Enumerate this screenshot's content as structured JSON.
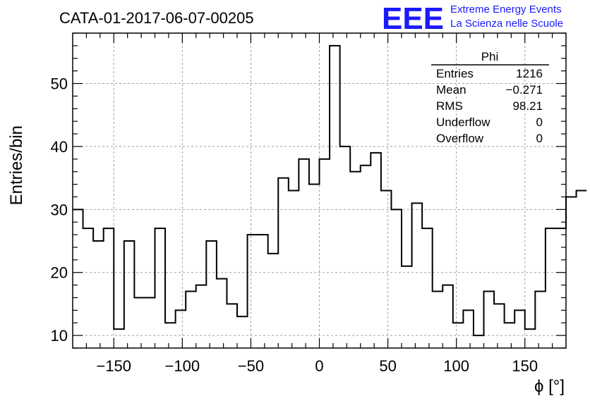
{
  "chart_data": {
    "type": "bar",
    "style": "step-histogram",
    "title": "CATA-01-2017-06-07-00205",
    "xlabel": "ϕ [°]",
    "ylabel": "Entries/bin",
    "xlim": [
      -180,
      180
    ],
    "ylim": [
      8,
      58
    ],
    "x_ticks": [
      -150,
      -100,
      -50,
      0,
      50,
      100,
      150
    ],
    "x_tick_labels": [
      "−150",
      "−100",
      "−50",
      "0",
      "50",
      "100",
      "150"
    ],
    "y_ticks": [
      10,
      20,
      30,
      40,
      50
    ],
    "y_tick_labels": [
      "10",
      "20",
      "30",
      "40",
      "50"
    ],
    "grid": true,
    "bin_width": 7.5,
    "bin_start": -180,
    "values": [
      30,
      27,
      25,
      27,
      11,
      25,
      16,
      16,
      27,
      12,
      14,
      17,
      18,
      25,
      19,
      15,
      13,
      26,
      26,
      23,
      35,
      33,
      38,
      34,
      38,
      56,
      40,
      36,
      37,
      39,
      33,
      30,
      21,
      31,
      27,
      17,
      18,
      12,
      14,
      10,
      17,
      15,
      12,
      14,
      11,
      17,
      27,
      27,
      32,
      33
    ],
    "line_color": "#000000",
    "grid_color": "#a0a0a0"
  },
  "stats_box": {
    "title": "Phi",
    "rows": [
      {
        "label": "Entries",
        "value": "1216"
      },
      {
        "label": "Mean",
        "value": "−0.271"
      },
      {
        "label": "RMS",
        "value": "98.21"
      },
      {
        "label": "Underflow",
        "value": "0"
      },
      {
        "label": "Overflow",
        "value": "0"
      }
    ]
  },
  "logo": {
    "mark": "EEE",
    "line1": "Extreme Energy Events",
    "line2": "La Scienza nelle Scuole",
    "color": "#1a1aff"
  }
}
